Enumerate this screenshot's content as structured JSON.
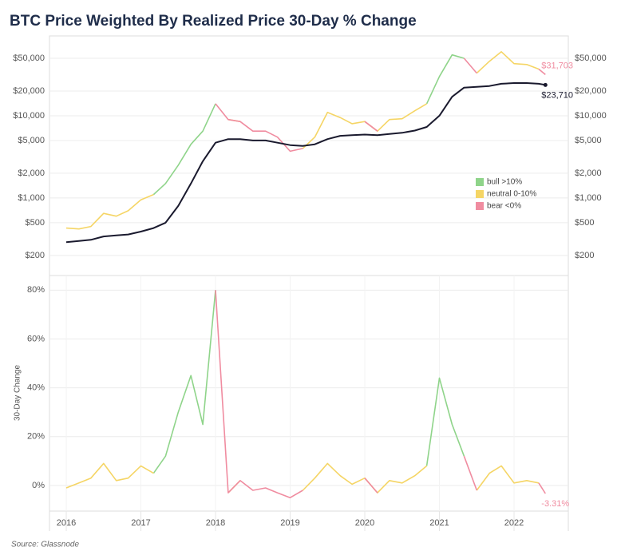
{
  "chart_data": [
    {
      "type": "line",
      "title": "BTC Price Weighted By Realized Price 30-Day % Change",
      "source": "Source: Glassnode",
      "log_scale": true,
      "grid": true,
      "legend": "right",
      "x": [
        2016.0,
        2016.17,
        2016.33,
        2016.5,
        2016.67,
        2016.83,
        2017.0,
        2017.17,
        2017.33,
        2017.5,
        2017.67,
        2017.83,
        2018.0,
        2018.17,
        2018.33,
        2018.5,
        2018.67,
        2018.83,
        2019.0,
        2019.17,
        2019.33,
        2019.5,
        2019.67,
        2019.83,
        2020.0,
        2020.17,
        2020.33,
        2020.5,
        2020.67,
        2020.83,
        2021.0,
        2021.17,
        2021.33,
        2021.5,
        2021.67,
        2021.83,
        2022.0,
        2022.17,
        2022.33,
        2022.42
      ],
      "xlim": [
        2015.775,
        2022.727
      ],
      "ylim": [
        114,
        93500
      ],
      "yticks": [
        {
          "value": 200,
          "label": "$200"
        },
        {
          "value": 500,
          "label": "$500"
        },
        {
          "value": 1000,
          "label": "$1,000"
        },
        {
          "value": 2000,
          "label": "$2,000"
        },
        {
          "value": 5000,
          "label": "$5,000"
        },
        {
          "value": 10000,
          "label": "$10,000"
        },
        {
          "value": 20000,
          "label": "$20,000"
        },
        {
          "value": 50000,
          "label": "$50,000"
        }
      ],
      "y2lim": [
        114,
        93500
      ],
      "y2ticks": [
        {
          "value": 200,
          "label": "$200"
        },
        {
          "value": 500,
          "label": "$500"
        },
        {
          "value": 1000,
          "label": "$1,000"
        },
        {
          "value": 2000,
          "label": "$2,000"
        },
        {
          "value": 5000,
          "label": "$5,000"
        },
        {
          "value": 10000,
          "label": "$10,000"
        },
        {
          "value": 20000,
          "label": "$20,000"
        },
        {
          "value": 50000,
          "label": "$50,000"
        }
      ],
      "series": [
        {
          "name": "bull >10%",
          "color": "#8fd48a",
          "values": [
            null,
            null,
            null,
            null,
            null,
            null,
            null,
            1100,
            1500,
            2500,
            4500,
            6500,
            14000,
            null,
            null,
            null,
            null,
            null,
            null,
            null,
            null,
            null,
            null,
            null,
            null,
            null,
            null,
            null,
            null,
            14000,
            30000,
            55000,
            50000,
            null,
            null,
            null,
            null,
            null,
            null,
            null
          ]
        },
        {
          "name": "neutral 0-10%",
          "color": "#f5d565",
          "values": [
            430,
            420,
            450,
            650,
            600,
            700,
            950,
            1100,
            null,
            null,
            null,
            null,
            null,
            9000,
            8500,
            null,
            null,
            null,
            null,
            4000,
            5500,
            11000,
            9500,
            8000,
            8500,
            6500,
            9000,
            9200,
            11500,
            14000,
            null,
            null,
            null,
            33000,
            46000,
            60000,
            43000,
            42000,
            37000,
            null
          ]
        },
        {
          "name": "bear <0%",
          "color": "#f08ca0",
          "values": [
            430,
            null,
            null,
            null,
            null,
            null,
            null,
            null,
            null,
            null,
            null,
            null,
            14000,
            9000,
            8500,
            6500,
            6500,
            5500,
            3700,
            4000,
            null,
            null,
            null,
            null,
            8500,
            6500,
            null,
            null,
            null,
            null,
            null,
            null,
            50000,
            33000,
            null,
            null,
            null,
            null,
            37000,
            31703
          ],
          "value_labels": [
            null,
            null,
            null,
            null,
            null,
            null,
            null,
            null,
            null,
            null,
            null,
            null,
            null,
            null,
            null,
            null,
            null,
            null,
            null,
            null,
            null,
            null,
            null,
            null,
            null,
            null,
            null,
            null,
            null,
            null,
            null,
            null,
            null,
            null,
            null,
            null,
            null,
            null,
            null,
            "$31,703"
          ]
        },
        {
          "color": "#1a1a2e",
          "end_marker": true,
          "values": [
            290,
            300,
            310,
            340,
            350,
            360,
            390,
            430,
            500,
            800,
            1500,
            2800,
            4700,
            5200,
            5200,
            5000,
            5000,
            4700,
            4400,
            4300,
            4500,
            5200,
            5700,
            5800,
            5900,
            5800,
            6000,
            6200,
            6600,
            7300,
            10000,
            17000,
            22000,
            22500,
            23000,
            24500,
            25000,
            25000,
            24500,
            23710
          ],
          "value_labels": [
            null,
            null,
            null,
            null,
            null,
            null,
            null,
            null,
            null,
            null,
            null,
            null,
            null,
            null,
            null,
            null,
            null,
            null,
            null,
            null,
            null,
            null,
            null,
            null,
            null,
            null,
            null,
            null,
            null,
            null,
            null,
            null,
            null,
            null,
            null,
            null,
            null,
            null,
            null,
            "$23,710"
          ]
        }
      ]
    },
    {
      "type": "line",
      "ylabel": "30-Day Change",
      "grid": true,
      "x": [
        2016.0,
        2016.17,
        2016.33,
        2016.5,
        2016.67,
        2016.83,
        2017.0,
        2017.17,
        2017.33,
        2017.5,
        2017.67,
        2017.83,
        2018.0,
        2018.17,
        2018.33,
        2018.5,
        2018.67,
        2018.83,
        2019.0,
        2019.17,
        2019.33,
        2019.5,
        2019.67,
        2019.83,
        2020.0,
        2020.17,
        2020.33,
        2020.5,
        2020.67,
        2020.83,
        2021.0,
        2021.17,
        2021.33,
        2021.5,
        2021.67,
        2021.83,
        2022.0,
        2022.17,
        2022.33,
        2022.42
      ],
      "xlim": [
        2015.775,
        2022.727
      ],
      "xticks": [
        2016,
        2017,
        2018,
        2019,
        2020,
        2021,
        2022
      ],
      "ylim": [
        -10.5,
        86
      ],
      "yticks": [
        {
          "value": 0,
          "label": "0%"
        },
        {
          "value": 20,
          "label": "20%"
        },
        {
          "value": 40,
          "label": "40%"
        },
        {
          "value": 60,
          "label": "60%"
        },
        {
          "value": 80,
          "label": "80%"
        }
      ],
      "series": [
        {
          "color": "#8fd48a",
          "values": [
            null,
            null,
            null,
            null,
            null,
            null,
            null,
            5,
            12,
            30,
            45,
            25,
            80,
            null,
            null,
            null,
            null,
            null,
            null,
            null,
            null,
            null,
            null,
            null,
            null,
            null,
            null,
            null,
            null,
            8,
            44,
            25,
            12,
            null,
            null,
            null,
            null,
            null,
            null,
            null
          ]
        },
        {
          "color": "#f5d565",
          "values": [
            -1,
            1,
            3,
            9,
            2,
            3,
            8,
            5,
            null,
            null,
            null,
            null,
            null,
            -3,
            2,
            null,
            null,
            null,
            null,
            -2,
            3,
            9,
            4,
            0.5,
            3,
            -3,
            2,
            1,
            4,
            8,
            null,
            null,
            null,
            -2,
            5,
            8,
            1,
            2,
            1,
            null
          ]
        },
        {
          "color": "#f08ca0",
          "values": [
            -1,
            null,
            null,
            null,
            null,
            null,
            null,
            null,
            null,
            null,
            null,
            null,
            80,
            -3,
            2,
            -2,
            -1,
            -3,
            -5,
            -2,
            null,
            null,
            null,
            null,
            3,
            -3,
            null,
            null,
            null,
            null,
            null,
            null,
            12,
            -2,
            null,
            null,
            null,
            null,
            1,
            -3.31
          ],
          "value_labels": [
            null,
            null,
            null,
            null,
            null,
            null,
            null,
            null,
            null,
            null,
            null,
            null,
            null,
            null,
            null,
            null,
            null,
            null,
            null,
            null,
            null,
            null,
            null,
            null,
            null,
            null,
            null,
            null,
            null,
            null,
            null,
            null,
            null,
            null,
            null,
            null,
            null,
            null,
            null,
            "-3.31%"
          ]
        }
      ]
    }
  ]
}
